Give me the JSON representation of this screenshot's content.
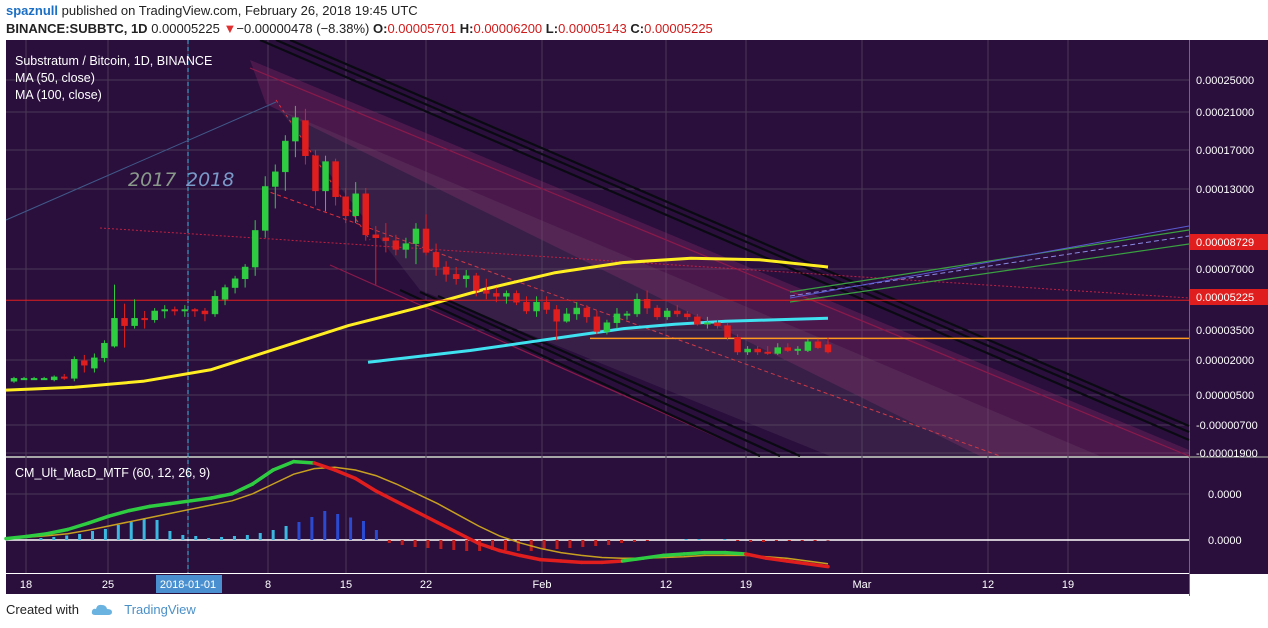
{
  "header": {
    "author": "spaznull",
    "published_text": "published on TradingView.com, February 26, 2018 19:45 UTC",
    "symbol": "BINANCE:SUBBTC, 1D",
    "last_price": "0.00005225",
    "change_arrow": "▼",
    "change": "−0.00000478 (−8.38%)",
    "open_label": "O:",
    "open": "0.00005701",
    "high_label": "H:",
    "high": "0.00006200",
    "low_label": "L:",
    "low": "0.00005143",
    "close_label": "C:",
    "close": "0.00005225"
  },
  "legend": {
    "title": "Substratum / Bitcoin, 1D, BINANCE",
    "ma50": "MA (50, close)",
    "ma100": "MA (100, close)",
    "year_old": "2017",
    "year_new": "2018",
    "macd_title": "CM_Ult_MacD_MTF (60, 12, 26, 9)"
  },
  "footer": {
    "created_with": "Created with",
    "brand": "TradingView"
  },
  "colors": {
    "background": "#2a0f3d",
    "grid": "#4a3a56",
    "up": "#2ecc40",
    "down": "#e01e1e",
    "ma50": "#3fe0f0",
    "ma100": "#ffee22",
    "resistance": "#e01e1e",
    "support": "#ff9a1e",
    "last_price_tag": "#e01e1e",
    "macd_up": "#2ecc40",
    "macd_down": "#e01e1e",
    "signal": "#c8a020"
  },
  "chart_data": [
    {
      "type": "candlestick",
      "title": "Substratum / Bitcoin, 1D, BINANCE",
      "y_axis_ticks": [
        "0.00025000",
        "0.00021000",
        "0.00017000",
        "0.00013000",
        "0.00008729",
        "0.00007000",
        "0.00005225",
        "0.00003500",
        "0.00002000",
        "0.00000500",
        "-0.00000700",
        "-0.00001900"
      ],
      "x_axis_ticks": [
        "18",
        "25",
        "2018-01-01",
        "8",
        "15",
        "22",
        "Feb",
        "12",
        "19",
        "Mar",
        "12",
        "19"
      ],
      "price_tags": [
        {
          "value": "0.00008729",
          "color": "#e01e1e"
        },
        {
          "value": "0.00005225",
          "color": "#e01e1e"
        }
      ],
      "ylim": [
        -1.9e-05,
        0.000265
      ],
      "candles_ohlc": [
        [
          3.2e-05,
          3.5e-05,
          3.1e-05,
          3.4e-05
        ],
        [
          3.4e-05,
          3.5e-05,
          3.3e-05,
          3.4e-05
        ],
        [
          3.4e-05,
          3.5e-05,
          3.3e-05,
          3.4e-05
        ],
        [
          3.4e-05,
          3.5e-05,
          3.3e-05,
          3.4e-05
        ],
        [
          3.3e-05,
          3.6e-05,
          3.2e-05,
          3.5e-05
        ],
        [
          3.5e-05,
          3.7e-05,
          3.3e-05,
          3.4e-05
        ],
        [
          3.4e-05,
          4.9e-05,
          3.2e-05,
          4.7e-05
        ],
        [
          4.6e-05,
          5e-05,
          3.8e-05,
          4.3e-05
        ],
        [
          4.1e-05,
          5.1e-05,
          3.8e-05,
          4.8e-05
        ],
        [
          4.8e-05,
          6e-05,
          4.5e-05,
          5.8e-05
        ],
        [
          5.6e-05,
          9.8e-05,
          5.5e-05,
          7.5e-05
        ],
        [
          7.5e-05,
          8.5e-05,
          5.5e-05,
          7e-05
        ],
        [
          7e-05,
          8.8e-05,
          6.8e-05,
          7.5e-05
        ],
        [
          7.5e-05,
          8e-05,
          6.8e-05,
          7.4e-05
        ],
        [
          7.4e-05,
          8.2e-05,
          7.2e-05,
          8e-05
        ],
        [
          8e-05,
          8.4e-05,
          7.5e-05,
          8.1e-05
        ],
        [
          8.1e-05,
          8.3e-05,
          7.7e-05,
          8e-05
        ],
        [
          8e-05,
          8.4e-05,
          7.6e-05,
          8.1e-05
        ],
        [
          8.1e-05,
          8.2e-05,
          7.6e-05,
          8e-05
        ],
        [
          8e-05,
          8.2e-05,
          7.3e-05,
          7.8e-05
        ],
        [
          7.8e-05,
          9.4e-05,
          7.6e-05,
          9e-05
        ],
        [
          8.8e-05,
          9.8e-05,
          8.4e-05,
          9.6e-05
        ],
        [
          9.6e-05,
          0.000104,
          9.2e-05,
          0.000102
        ],
        [
          0.000102,
          0.000112,
          9.6e-05,
          0.00011
        ],
        [
          0.00011,
          0.000142,
          0.000104,
          0.000135
        ],
        [
          0.000135,
          0.000172,
          0.00013,
          0.000165
        ],
        [
          0.000165,
          0.00018,
          0.00015,
          0.000175
        ],
        [
          0.000175,
          0.0002,
          0.000162,
          0.000196
        ],
        [
          0.000196,
          0.00022,
          0.000185,
          0.000212
        ],
        [
          0.00021,
          0.000218,
          0.00018,
          0.000186
        ],
        [
          0.000186,
          0.00019,
          0.000152,
          0.000162
        ],
        [
          0.000162,
          0.000186,
          0.000148,
          0.000182
        ],
        [
          0.000182,
          0.000184,
          0.000152,
          0.000158
        ],
        [
          0.000158,
          0.000164,
          0.00014,
          0.000145
        ],
        [
          0.000145,
          0.000168,
          0.00014,
          0.00016
        ],
        [
          0.00016,
          0.000164,
          0.000128,
          0.000132
        ],
        [
          0.000132,
          0.000138,
          9.8e-05,
          0.00013
        ],
        [
          0.00013,
          0.00014,
          0.00012,
          0.000128
        ],
        [
          0.000128,
          0.000132,
          0.000118,
          0.000122
        ],
        [
          0.000122,
          0.00013,
          0.000116,
          0.000126
        ],
        [
          0.000126,
          0.00014,
          0.000112,
          0.000136
        ],
        [
          0.000136,
          0.000146,
          0.000118,
          0.00012
        ],
        [
          0.00012,
          0.000126,
          0.000104,
          0.00011
        ],
        [
          0.00011,
          0.000114,
          0.0001,
          0.000105
        ],
        [
          0.000105,
          0.00011,
          9.8e-05,
          0.000102
        ],
        [
          0.000102,
          0.000108,
          9.6e-05,
          0.000104
        ],
        [
          0.000104,
          0.000106,
          9e-05,
          9.4e-05
        ],
        [
          9.4e-05,
          0.000102,
          8.8e-05,
          9.2e-05
        ],
        [
          9.2e-05,
          9.6e-05,
          8.6e-05,
          9e-05
        ],
        [
          9e-05,
          9.4e-05,
          8.5e-05,
          9.2e-05
        ],
        [
          9.2e-05,
          9.4e-05,
          8.4e-05,
          8.6e-05
        ],
        [
          8.6e-05,
          9e-05,
          7.8e-05,
          8e-05
        ],
        [
          8e-05,
          9e-05,
          7.6e-05,
          8.6e-05
        ],
        [
          8.6e-05,
          9e-05,
          7.8e-05,
          8.1e-05
        ],
        [
          8.1e-05,
          8.4e-05,
          6e-05,
          7.3e-05
        ],
        [
          7.3e-05,
          8.2e-05,
          7.2e-05,
          7.8e-05
        ],
        [
          7.8e-05,
          8.6e-05,
          7.4e-05,
          8.2e-05
        ],
        [
          8.2e-05,
          8.4e-05,
          7.2e-05,
          7.6e-05
        ],
        [
          7.6e-05,
          8e-05,
          6.4e-05,
          6.6e-05
        ],
        [
          6.6e-05,
          7.4e-05,
          6.4e-05,
          7.2e-05
        ],
        [
          7.2e-05,
          8.2e-05,
          6.8e-05,
          7.8e-05
        ],
        [
          7.8e-05,
          8e-05,
          7.4e-05,
          7.8e-05
        ],
        [
          7.8e-05,
          9.2e-05,
          7.6e-05,
          8.8e-05
        ],
        [
          8.8e-05,
          9.4e-05,
          7.8e-05,
          8.2e-05
        ],
        [
          8.2e-05,
          8.4e-05,
          7.4e-05,
          7.6e-05
        ],
        [
          7.6e-05,
          8.2e-05,
          7.4e-05,
          8e-05
        ],
        [
          8e-05,
          8.4e-05,
          7.6e-05,
          7.8e-05
        ],
        [
          7.8e-05,
          8e-05,
          7.4e-05,
          7.6e-05
        ],
        [
          7.6e-05,
          7.8e-05,
          7e-05,
          7.1e-05
        ],
        [
          7.1e-05,
          7.6e-05,
          6.8e-05,
          7.2e-05
        ],
        [
          7.2e-05,
          7.4e-05,
          6.8e-05,
          7e-05
        ],
        [
          7e-05,
          7.2e-05,
          6e-05,
          6.2e-05
        ],
        [
          6.2e-05,
          6.4e-05,
          5e-05,
          5.2e-05
        ],
        [
          5.2e-05,
          5.6e-05,
          5e-05,
          5.4e-05
        ],
        [
          5.4e-05,
          5.6e-05,
          5e-05,
          5.2e-05
        ],
        [
          5.2e-05,
          5.6e-05,
          5e-05,
          5.1e-05
        ],
        [
          5.1e-05,
          5.8e-05,
          5e-05,
          5.5e-05
        ],
        [
          5.5e-05,
          5.8e-05,
          5.2e-05,
          5.3e-05
        ],
        [
          5.3e-05,
          5.6e-05,
          5e-05,
          5.4e-05
        ],
        [
          5.3e-05,
          6.1e-05,
          5.2e-05,
          5.9e-05
        ],
        [
          5.9e-05,
          6.1e-05,
          5.4e-05,
          5.5e-05
        ],
        [
          5.7e-05,
          6.2e-05,
          5.1e-05,
          5.2e-05
        ]
      ],
      "ma50": [
        4.5e-05,
        4.9e-05,
        5.3e-05,
        5.8e-05,
        6.3e-05,
        6.8e-05,
        7.1e-05,
        7.3e-05,
        7.4e-05,
        7.5e-05
      ],
      "ma100": [
        2.6e-05,
        2.8e-05,
        3.2e-05,
        4e-05,
        5.5e-05,
        7e-05,
        8.2e-05,
        9.5e-05,
        0.000106,
        0.000113,
        0.000116,
        0.000115,
        0.00011
      ],
      "levels": [
        {
          "value": 8.73e-05,
          "color": "#e01e1e"
        },
        {
          "value": 6.13e-05,
          "color": "#ff9a1e"
        }
      ]
    },
    {
      "type": "bar+line",
      "title": "CM_Ult_MacD_MTF (60, 12, 26, 9)",
      "y_axis_ticks": [
        "0.0000",
        "0.0000"
      ],
      "histogram": [
        0.0,
        0.04,
        0.06,
        0.09,
        0.12,
        0.18,
        0.22,
        0.3,
        0.36,
        0.42,
        0.4,
        0.18,
        0.1,
        0.08,
        0.04,
        0.06,
        0.08,
        0.1,
        0.14,
        0.2,
        0.28,
        0.36,
        0.46,
        0.58,
        0.52,
        0.45,
        0.38,
        0.2,
        -0.06,
        -0.1,
        -0.14,
        -0.16,
        -0.18,
        -0.2,
        -0.22,
        -0.22,
        -0.2,
        -0.2,
        -0.22,
        -0.22,
        -0.2,
        -0.18,
        -0.16,
        -0.14,
        -0.12,
        -0.1,
        -0.06,
        -0.04,
        -0.02,
        0.0,
        0.0,
        0.02,
        0.02,
        0.0,
        0.02,
        -0.02,
        -0.04,
        -0.04,
        -0.02,
        -0.02,
        -0.02,
        -0.02,
        -0.01
      ],
      "macd": [
        0.02,
        0.05,
        0.09,
        0.15,
        0.24,
        0.34,
        0.42,
        0.48,
        0.52,
        0.56,
        0.6,
        0.66,
        0.8,
        1.0,
        1.12,
        1.1,
        1.0,
        0.88,
        0.7,
        0.55,
        0.4,
        0.25,
        0.1,
        -0.05,
        -0.15,
        -0.22,
        -0.28,
        -0.3,
        -0.32,
        -0.32,
        -0.3,
        -0.26,
        -0.22,
        -0.2,
        -0.18,
        -0.18,
        -0.2,
        -0.26,
        -0.3,
        -0.34,
        -0.38
      ],
      "signal": [
        0.02,
        0.04,
        0.06,
        0.09,
        0.14,
        0.2,
        0.26,
        0.32,
        0.38,
        0.44,
        0.5,
        0.56,
        0.66,
        0.8,
        0.94,
        1.02,
        1.04,
        1.0,
        0.92,
        0.8,
        0.66,
        0.52,
        0.36,
        0.2,
        0.06,
        -0.04,
        -0.12,
        -0.18,
        -0.22,
        -0.25,
        -0.26,
        -0.26,
        -0.25,
        -0.24,
        -0.22,
        -0.22,
        -0.22,
        -0.24,
        -0.26,
        -0.3,
        -0.34
      ]
    }
  ]
}
